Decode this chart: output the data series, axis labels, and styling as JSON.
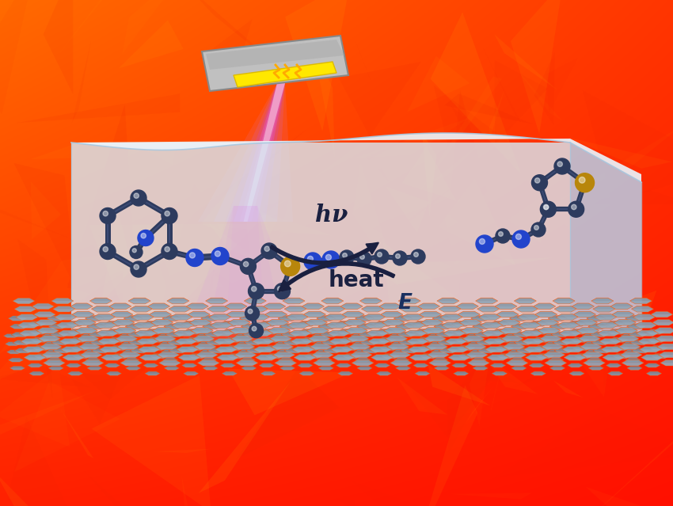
{
  "atom_dark": "#2D3B5E",
  "atom_blue": "#2244CC",
  "atom_sulfur": "#B8860B",
  "bond_color": "#2D3B5E",
  "hv_label": "hν",
  "heat_label": "heat",
  "e_label": "E"
}
